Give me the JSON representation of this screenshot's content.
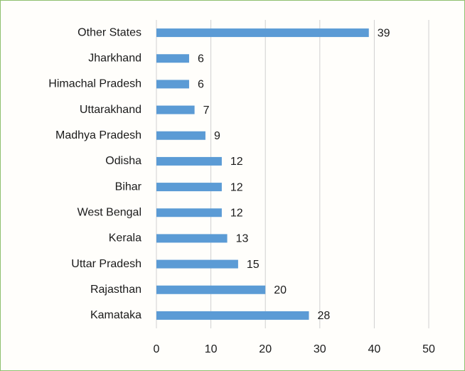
{
  "chart_data": {
    "type": "bar",
    "orientation": "horizontal",
    "categories": [
      "Other States",
      "Jharkhand",
      "Himachal Pradesh",
      "Uttarakhand",
      "Madhya Pradesh",
      "Odisha",
      "Bihar",
      "West Bengal",
      "Kerala",
      "Uttar Pradesh",
      "Rajasthan",
      "Kamataka"
    ],
    "values": [
      39,
      6,
      6,
      7,
      9,
      12,
      12,
      12,
      13,
      15,
      20,
      28
    ],
    "color": "#5b9bd5",
    "xlim": [
      0,
      50
    ],
    "xticks": [
      0,
      10,
      20,
      30,
      40,
      50
    ],
    "grid": true
  }
}
